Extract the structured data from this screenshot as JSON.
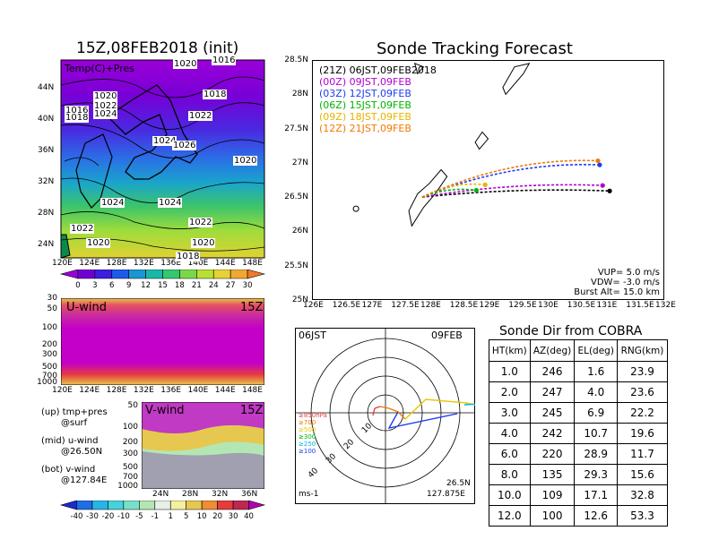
{
  "left": {
    "title": "15Z,08FEB2018 (init)",
    "map": {
      "label": "Temp(C)+Pres",
      "lat_ticks": [
        "44N",
        "40N",
        "36N",
        "32N",
        "28N",
        "24N"
      ],
      "lon_ticks": [
        "120E",
        "124E",
        "128E",
        "132E",
        "136E",
        "140E",
        "144E",
        "148E"
      ],
      "isobar_labels": [
        "1020",
        "1020",
        "1018",
        "1016",
        "1022",
        "1024",
        "1018",
        "1022",
        "1024",
        "1026",
        "1020",
        "1024",
        "1024",
        "1022",
        "1022",
        "1020",
        "1020",
        "1018",
        "1016"
      ],
      "cbar_labels": [
        "0",
        "3",
        "6",
        "9",
        "12",
        "15",
        "18",
        "21",
        "24",
        "27",
        "30"
      ],
      "cbar_colors": [
        "#9a00d8",
        "#6f00d2",
        "#3e1ee0",
        "#1e5ae8",
        "#1a96d2",
        "#18b8a8",
        "#32c870",
        "#78d84a",
        "#b8e032",
        "#e6d232",
        "#f0a832",
        "#f07a2a"
      ]
    },
    "uwind": {
      "label": "U-wind",
      "time": "15Z",
      "p_ticks": [
        "30",
        "50",
        "100",
        "200",
        "300",
        "500",
        "700",
        "1000"
      ],
      "lon_ticks": [
        "120E",
        "124E",
        "128E",
        "132E",
        "136E",
        "140E",
        "144E",
        "148E"
      ]
    },
    "vwind": {
      "label": "V-wind",
      "time": "15Z",
      "p_ticks": [
        "50",
        "100",
        "200",
        "300",
        "500",
        "700",
        "1000"
      ],
      "lat_ticks": [
        "24N",
        "28N",
        "32N",
        "36N"
      ]
    },
    "legend_text": [
      [
        "(up) tmp+pres",
        "@surf"
      ],
      [
        "(mid) u-wind",
        "@26.50N"
      ],
      [
        "(bot) v-wind",
        "@127.84E"
      ]
    ],
    "wind_cbar_labels": [
      "-40",
      "-30",
      "-20",
      "-10",
      "-5",
      "-1",
      "1",
      "5",
      "10",
      "20",
      "30",
      "40"
    ],
    "wind_cbar_colors": [
      "#1e2ad0",
      "#1e6ee6",
      "#28b4e6",
      "#46d2dc",
      "#78e0c8",
      "#b4e6b4",
      "#e6f0e6",
      "#f5f0a0",
      "#e6c850",
      "#f08c32",
      "#e63c3c",
      "#be2850",
      "#b400b4"
    ]
  },
  "track": {
    "title": "Sonde Tracking Forecast",
    "lat_ticks": [
      "28.5N",
      "28N",
      "27.5N",
      "27N",
      "26.5N",
      "26N",
      "25.5N",
      "25N"
    ],
    "lon_ticks": [
      "126E",
      "126.5E",
      "127E",
      "127.5E",
      "128E",
      "128.5E",
      "129E",
      "129.5E",
      "130E",
      "130.5E",
      "131E",
      "131.5E",
      "132E"
    ],
    "legend": [
      {
        "text": "(21Z)  06JST,09FEB2018",
        "color": "#000000"
      },
      {
        "text": "(00Z)  09JST,09FEB",
        "color": "#b400d2"
      },
      {
        "text": "(03Z)  12JST,09FEB",
        "color": "#1e3cf0"
      },
      {
        "text": "(06Z)  15JST,09FEB",
        "color": "#00b400"
      },
      {
        "text": "(09Z)  18JST,09FEB",
        "color": "#e6b400"
      },
      {
        "text": "(12Z)  21JST,09FEB",
        "color": "#f07800"
      }
    ],
    "params": [
      "VUP=  5.0  m/s",
      "VDW= -3.0  m/s",
      "Burst Alt=  15.0  km"
    ],
    "tracks": [
      {
        "name": "21Z",
        "color": "#000000",
        "start": [
          127.875,
          26.5
        ],
        "end": [
          131.07,
          26.59
        ]
      },
      {
        "name": "00Z",
        "color": "#b400d2",
        "start": [
          127.875,
          26.5
        ],
        "end": [
          130.95,
          26.67
        ]
      },
      {
        "name": "03Z",
        "color": "#1e3cf0",
        "start": [
          127.875,
          26.5
        ],
        "end": [
          130.9,
          26.97
        ]
      },
      {
        "name": "06Z",
        "color": "#00b400",
        "start": [
          127.875,
          26.5
        ],
        "end": [
          128.8,
          26.6
        ]
      },
      {
        "name": "09Z",
        "color": "#e6b400",
        "start": [
          127.875,
          26.5
        ],
        "end": [
          128.95,
          26.68
        ]
      },
      {
        "name": "12Z",
        "color": "#f07800",
        "start": [
          127.875,
          26.5
        ],
        "end": [
          130.87,
          27.03
        ]
      }
    ]
  },
  "polar": {
    "left_label": "06JST",
    "right_label": "09FEB",
    "unit": "ms-1",
    "loc_lat": "26.5N",
    "loc_lon": "127.875E",
    "ring_labels": [
      "10",
      "20",
      "30",
      "40"
    ],
    "level_labels": [
      {
        "text": "≥850hPa",
        "color": "#e63c3c"
      },
      {
        "text": "≥700",
        "color": "#f07800"
      },
      {
        "text": "≥500",
        "color": "#e6c800"
      },
      {
        "text": "≥300",
        "color": "#00b400"
      },
      {
        "text": "≥250",
        "color": "#00b4e6"
      },
      {
        "text": "≥100",
        "color": "#1e3cf0"
      }
    ]
  },
  "table": {
    "title": "Sonde Dir from COBRA",
    "headers": [
      "HT(km)",
      "AZ(deg)",
      "EL(deg)",
      "RNG(km)"
    ],
    "rows": [
      [
        "1.0",
        "246",
        "1.6",
        "23.9"
      ],
      [
        "2.0",
        "247",
        "4.0",
        "23.6"
      ],
      [
        "3.0",
        "245",
        "6.9",
        "22.2"
      ],
      [
        "4.0",
        "242",
        "10.7",
        "19.6"
      ],
      [
        "6.0",
        "220",
        "28.9",
        "11.7"
      ],
      [
        "8.0",
        "135",
        "29.3",
        "15.6"
      ],
      [
        "10.0",
        "109",
        "17.1",
        "32.8"
      ],
      [
        "12.0",
        "100",
        "12.6",
        "53.3"
      ]
    ]
  }
}
